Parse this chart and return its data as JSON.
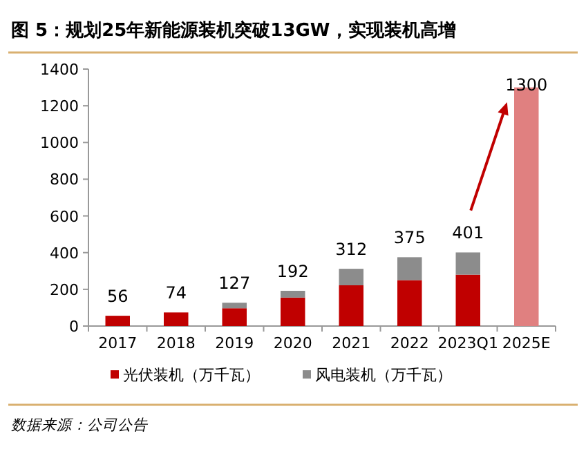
{
  "chart_data": {
    "type": "bar",
    "stacked": true,
    "title": "图 5：规划25年新能源装机突破13GW，实现装机高增",
    "categories": [
      "2017",
      "2018",
      "2019",
      "2020",
      "2021",
      "2022",
      "2023Q1",
      "2025E"
    ],
    "series": [
      {
        "name": "光伏装机（万千瓦）",
        "color": "#c00000",
        "colors": [
          "#c00000",
          "#c00000",
          "#c00000",
          "#c00000",
          "#c00000",
          "#c00000",
          "#c00000",
          "#e08080"
        ],
        "values": [
          56,
          74,
          97,
          155,
          222,
          250,
          280,
          1300
        ]
      },
      {
        "name": "风电装机（万千瓦）",
        "color": "#8c8c8c",
        "values": [
          0,
          0,
          30,
          37,
          90,
          125,
          121,
          null
        ]
      }
    ],
    "totals": [
      "56",
      "74",
      "127",
      "192",
      "312",
      "375",
      "401",
      "1300"
    ],
    "ylim": [
      0,
      1400
    ],
    "yticks": [
      0,
      200,
      400,
      600,
      800,
      1000,
      1200,
      1400
    ],
    "grid": false,
    "legend": "bottom",
    "annotations": [
      "数据来源：公司公告"
    ]
  }
}
